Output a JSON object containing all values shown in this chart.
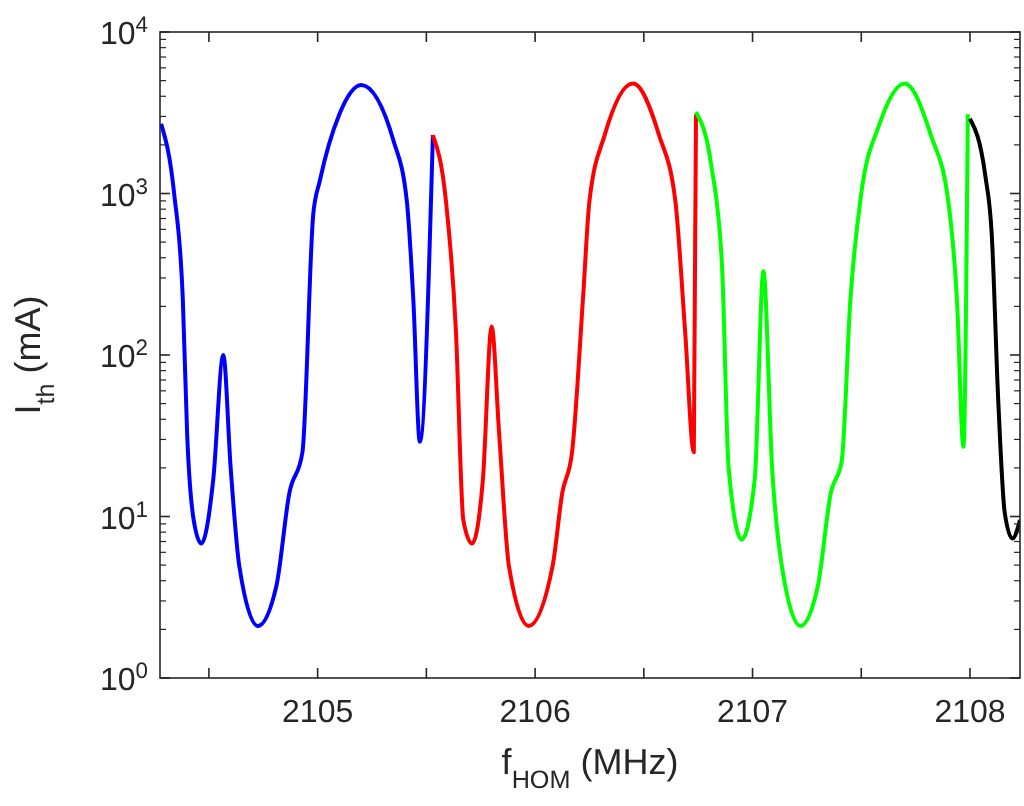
{
  "chart_data": {
    "type": "line",
    "xlabel": "f$_{HOM}$ (MHz)",
    "ylabel": "I$_{th}$ (mA)",
    "log": "y",
    "grid": false,
    "line_style": "solid",
    "marker": "none",
    "xlim": [
      2104.275,
      2108.23
    ],
    "xticks": [
      {
        "value": 2104.5,
        "label": null
      },
      2105,
      {
        "value": 2105.5,
        "label": null
      },
      2106,
      {
        "value": 2106.5,
        "label": null
      },
      2107,
      {
        "value": 2107.5,
        "label": null
      },
      2108
    ],
    "ylim": [
      1,
      10000
    ],
    "yticks": [
      {
        "value": 1,
        "label": "10$^{0}$"
      },
      {
        "value": 10,
        "label": "10$^{1}$"
      },
      {
        "value": 100,
        "label": "10$^{2}$"
      },
      {
        "value": 1000,
        "label": "10$^{3}$"
      },
      {
        "value": 10000,
        "label": "10$^{4}$"
      }
    ],
    "series": [
      {
        "color": "#0000ff",
        "x": [
          2104.28,
          2104.34,
          2104.38,
          2104.4,
          2104.43,
          2104.465,
          2104.52,
          2104.566,
          2104.6,
          2104.64,
          2104.725,
          2104.81,
          2104.87,
          2104.93,
          2104.98,
          2105.01,
          2105.1,
          2105.2,
          2105.35,
          2105.41,
          2105.44,
          2105.47,
          2105.53
        ],
        "values": [
          2700,
          1000,
          220,
          32,
          9.5,
          6.8,
          17,
          100,
          20,
          4.9,
          2.1,
          3.7,
          14,
          25,
          750,
          1200,
          3100,
          4700,
          2100,
          900,
          220,
          29,
          2300
        ]
      },
      {
        "color": "#ff0000",
        "x": [
          2105.53,
          2105.59,
          2105.636,
          2105.67,
          2105.71,
          2105.76,
          2105.8,
          2105.835,
          2105.88,
          2105.97,
          2106.08,
          2106.125,
          2106.17,
          2106.22,
          2106.25,
          2106.32,
          2106.45,
          2106.57,
          2106.645,
          2106.69,
          2106.73,
          2106.74
        ],
        "values": [
          2300,
          900,
          140,
          9.5,
          6.8,
          17,
          150,
          32,
          4.9,
          2.1,
          4.9,
          14,
          25,
          220,
          900,
          2300,
          4800,
          2300,
          900,
          140,
          25,
          3100
        ]
      },
      {
        "color": "#00ff00",
        "x": [
          2106.74,
          2106.81,
          2106.86,
          2106.89,
          2106.95,
          2107.01,
          2107.05,
          2107.09,
          2107.135,
          2107.22,
          2107.3,
          2107.36,
          2107.41,
          2107.45,
          2107.5,
          2107.58,
          2107.7,
          2107.82,
          2107.9,
          2107.94,
          2107.97,
          2107.99
        ],
        "values": [
          3200,
          1500,
          350,
          20,
          7.2,
          17,
          330,
          20,
          4.9,
          2.1,
          3.7,
          14,
          22,
          220,
          1000,
          2600,
          4800,
          2300,
          900,
          220,
          27,
          3100
        ]
      },
      {
        "color": "#000000",
        "x": [
          2108,
          2108.07,
          2108.1,
          2108.13,
          2108.16,
          2108.195,
          2108.23
        ],
        "values": [
          2900,
          1300,
          560,
          52,
          10.5,
          7.3,
          9.5
        ]
      }
    ]
  }
}
